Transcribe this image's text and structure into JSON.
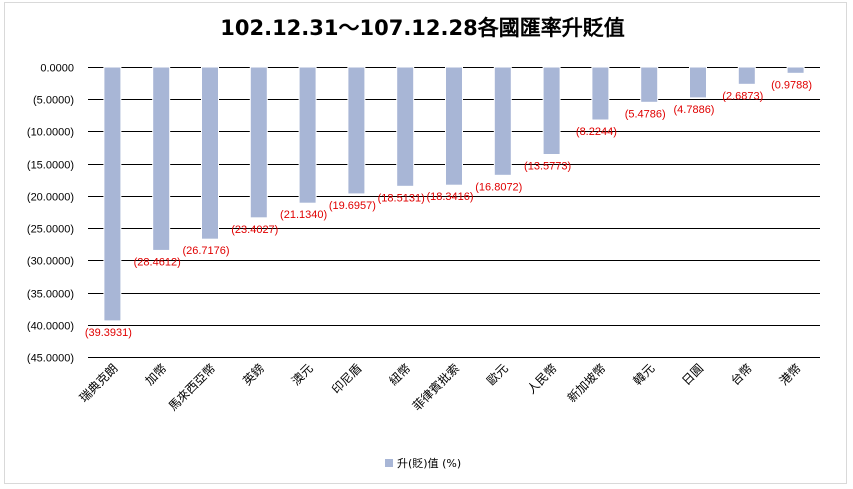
{
  "chart_data": {
    "type": "bar",
    "title": "102.12.31～107.12.28各國匯率升貶值",
    "categories": [
      "瑞典克朗",
      "加幣",
      "馬來西亞幣",
      "英鎊",
      "澳元",
      "印尼盾",
      "紐幣",
      "菲律賓批索",
      "歐元",
      "人民幣",
      "新加坡幣",
      "韓元",
      "日圓",
      "台幣",
      "港幣"
    ],
    "series": [
      {
        "name": "升(貶)值 (%)",
        "values": [
          -39.3931,
          -28.4612,
          -26.7176,
          -23.4027,
          -21.134,
          -19.6957,
          -18.5131,
          -18.3416,
          -16.8072,
          -13.5773,
          -8.2244,
          -5.4786,
          -4.7886,
          -2.6873,
          -0.9788
        ],
        "labels": [
          "(39.3931)",
          "(28.4612)",
          "(26.7176)",
          "(23.4027)",
          "(21.1340)",
          "(19.6957)",
          "(18.5131)",
          "(18.3416)",
          "(16.8072)",
          "(13.5773)",
          "(8.2244)",
          "(5.4786)",
          "(4.7886)",
          "(2.6873)",
          "(0.9788)"
        ]
      }
    ],
    "ylim": [
      -45,
      0
    ],
    "yticks": [
      0,
      -5,
      -10,
      -15,
      -20,
      -25,
      -30,
      -35,
      -40,
      -45
    ],
    "ytick_labels": [
      "0.0000",
      "(5.0000)",
      "(10.0000)",
      "(15.0000)",
      "(20.0000)",
      "(25.0000)",
      "(30.0000)",
      "(35.0000)",
      "(40.0000)",
      "(45.0000)"
    ],
    "grid": true,
    "legend": "bottom",
    "colors": {
      "bar": "#a8b6d6",
      "data_label": "#e00000",
      "negative_tick": "#e00000",
      "grid": "#000000"
    }
  }
}
